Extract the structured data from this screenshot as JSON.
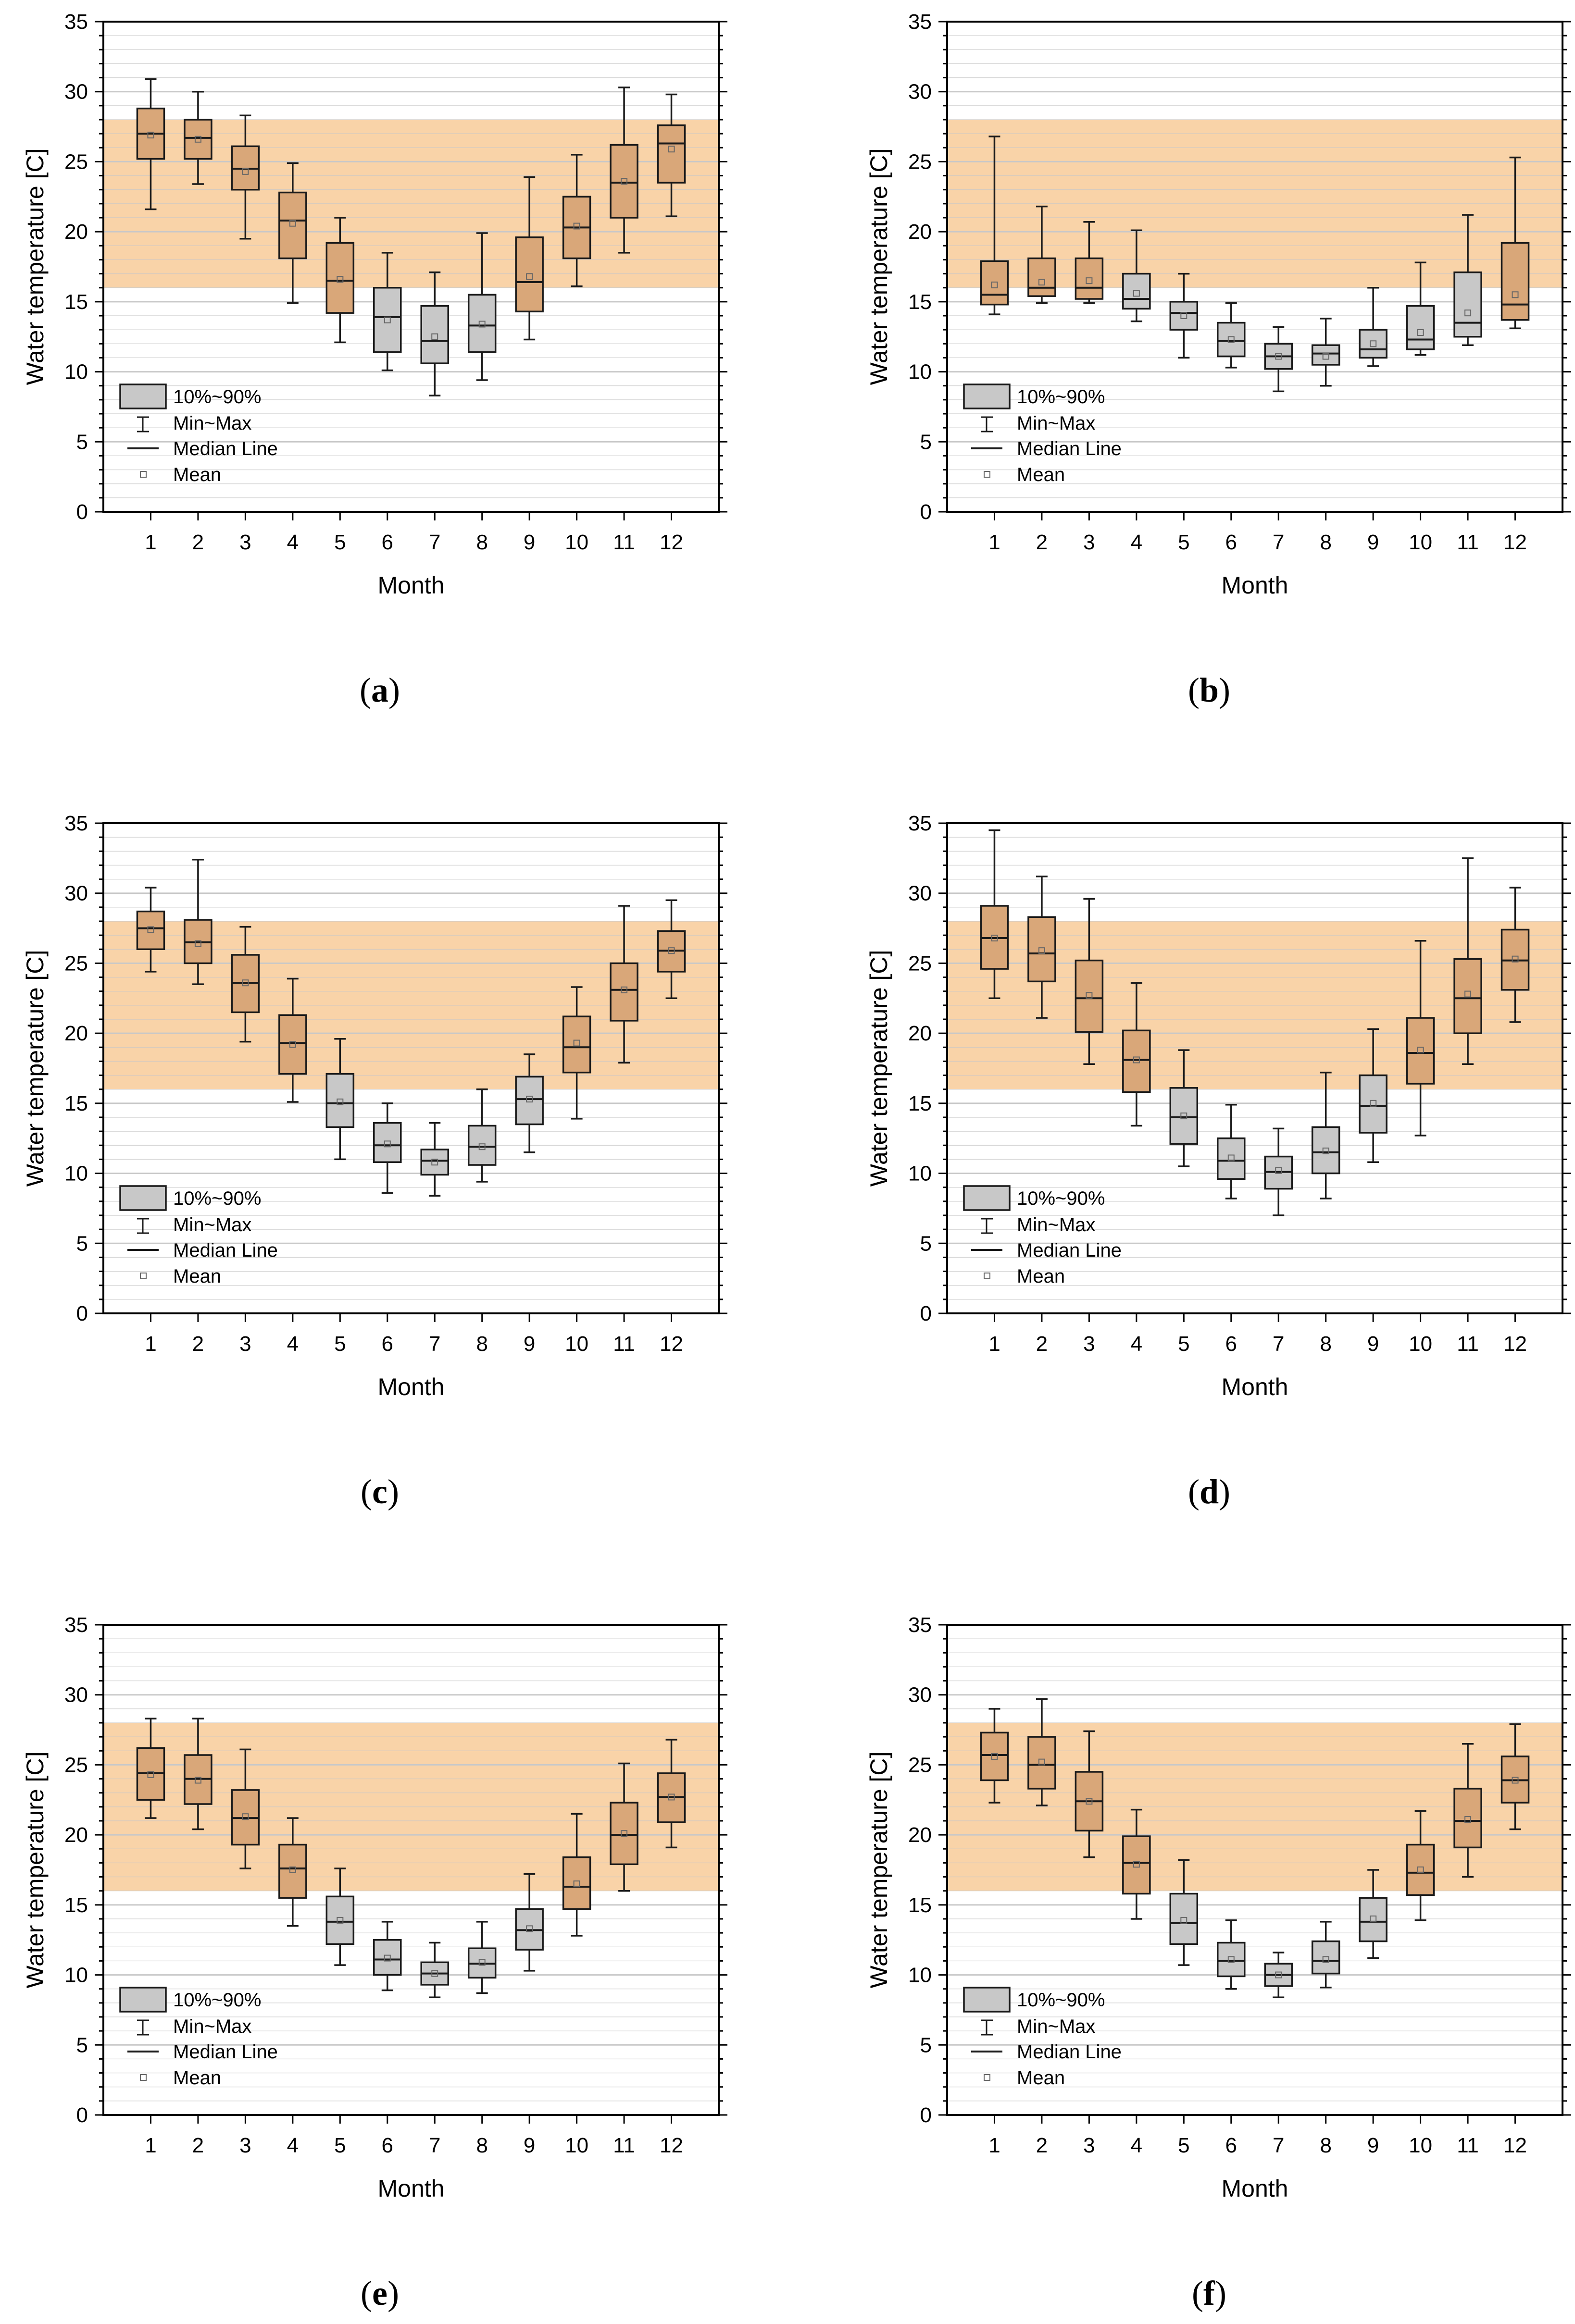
{
  "figure": {
    "legend": {
      "box_label": "10%~90%",
      "whisker_label": "Min~Max",
      "median_label": "Median Line",
      "mean_label": "Mean"
    },
    "colors": {
      "band": "#f9d3a8",
      "box_in_band": "#d9a779",
      "box_outside": "#c8c8c8",
      "box_border": "#1a1a1a",
      "grid": "#c8c8c8"
    }
  },
  "chart_data": [
    {
      "panel": "a",
      "caption_open": "(",
      "caption_letter": "a",
      "caption_close": ")",
      "type": "boxplot",
      "xlabel": "Month",
      "ylabel": "Water temperature [C]",
      "categories": [
        "1",
        "2",
        "3",
        "4",
        "5",
        "6",
        "7",
        "8",
        "9",
        "10",
        "11",
        "12"
      ],
      "ylim": [
        0,
        35
      ],
      "yticks": [
        "0",
        "5",
        "10",
        "15",
        "20",
        "25",
        "30",
        "35"
      ],
      "band": [
        16,
        28
      ],
      "series": [
        {
          "month": "1",
          "min": 21.6,
          "p10": 25.2,
          "median": 27.0,
          "p90": 28.8,
          "max": 30.9,
          "mean": 26.9
        },
        {
          "month": "2",
          "min": 23.4,
          "p10": 25.2,
          "median": 26.7,
          "p90": 28.0,
          "max": 30.0,
          "mean": 26.6
        },
        {
          "month": "3",
          "min": 19.5,
          "p10": 23.0,
          "median": 24.5,
          "p90": 26.1,
          "max": 28.3,
          "mean": 24.3
        },
        {
          "month": "4",
          "min": 14.9,
          "p10": 18.1,
          "median": 20.8,
          "p90": 22.8,
          "max": 24.9,
          "mean": 20.6
        },
        {
          "month": "5",
          "min": 12.1,
          "p10": 14.2,
          "median": 16.5,
          "p90": 19.2,
          "max": 21.0,
          "mean": 16.6
        },
        {
          "month": "6",
          "min": 10.1,
          "p10": 11.4,
          "median": 13.9,
          "p90": 16.0,
          "max": 18.5,
          "mean": 13.7
        },
        {
          "month": "7",
          "min": 8.3,
          "p10": 10.6,
          "median": 12.2,
          "p90": 14.7,
          "max": 17.1,
          "mean": 12.5
        },
        {
          "month": "8",
          "min": 9.4,
          "p10": 11.4,
          "median": 13.3,
          "p90": 15.5,
          "max": 19.9,
          "mean": 13.4
        },
        {
          "month": "9",
          "min": 12.3,
          "p10": 14.3,
          "median": 16.4,
          "p90": 19.6,
          "max": 23.9,
          "mean": 16.8
        },
        {
          "month": "10",
          "min": 16.1,
          "p10": 18.1,
          "median": 20.3,
          "p90": 22.5,
          "max": 25.5,
          "mean": 20.4
        },
        {
          "month": "11",
          "min": 18.5,
          "p10": 21.0,
          "median": 23.5,
          "p90": 26.2,
          "max": 30.3,
          "mean": 23.6
        },
        {
          "month": "12",
          "min": 21.1,
          "p10": 23.5,
          "median": 26.3,
          "p90": 27.6,
          "max": 29.8,
          "mean": 25.9
        }
      ]
    },
    {
      "panel": "b",
      "caption_open": "(",
      "caption_letter": "b",
      "caption_close": ")",
      "type": "boxplot",
      "xlabel": "Month",
      "ylabel": "Water temperature [C]",
      "categories": [
        "1",
        "2",
        "3",
        "4",
        "5",
        "6",
        "7",
        "8",
        "9",
        "10",
        "11",
        "12"
      ],
      "ylim": [
        0,
        35
      ],
      "yticks": [
        "0",
        "5",
        "10",
        "15",
        "20",
        "25",
        "30",
        "35"
      ],
      "band": [
        16,
        28
      ],
      "series": [
        {
          "month": "1",
          "min": 14.1,
          "p10": 14.8,
          "median": 15.5,
          "p90": 17.9,
          "max": 26.8,
          "mean": 16.2
        },
        {
          "month": "2",
          "min": 14.9,
          "p10": 15.4,
          "median": 16.0,
          "p90": 18.1,
          "max": 21.8,
          "mean": 16.4
        },
        {
          "month": "3",
          "min": 14.9,
          "p10": 15.2,
          "median": 16.0,
          "p90": 18.1,
          "max": 20.7,
          "mean": 16.5
        },
        {
          "month": "4",
          "min": 13.6,
          "p10": 14.5,
          "median": 15.2,
          "p90": 17.0,
          "max": 20.1,
          "mean": 15.6
        },
        {
          "month": "5",
          "min": 11.0,
          "p10": 13.0,
          "median": 14.2,
          "p90": 15.0,
          "max": 17.0,
          "mean": 14.0
        },
        {
          "month": "6",
          "min": 10.3,
          "p10": 11.1,
          "median": 12.2,
          "p90": 13.5,
          "max": 14.9,
          "mean": 12.3
        },
        {
          "month": "7",
          "min": 8.6,
          "p10": 10.2,
          "median": 11.1,
          "p90": 12.0,
          "max": 13.2,
          "mean": 11.1
        },
        {
          "month": "8",
          "min": 9.0,
          "p10": 10.5,
          "median": 11.3,
          "p90": 11.9,
          "max": 13.8,
          "mean": 11.1
        },
        {
          "month": "9",
          "min": 10.4,
          "p10": 11.0,
          "median": 11.6,
          "p90": 13.0,
          "max": 16.0,
          "mean": 12.0
        },
        {
          "month": "10",
          "min": 11.2,
          "p10": 11.6,
          "median": 12.3,
          "p90": 14.7,
          "max": 17.8,
          "mean": 12.8
        },
        {
          "month": "11",
          "min": 11.9,
          "p10": 12.5,
          "median": 13.5,
          "p90": 17.1,
          "max": 21.2,
          "mean": 14.2
        },
        {
          "month": "12",
          "min": 13.1,
          "p10": 13.7,
          "median": 14.8,
          "p90": 19.2,
          "max": 25.3,
          "mean": 15.5
        }
      ]
    },
    {
      "panel": "c",
      "caption_open": "(",
      "caption_letter": "c",
      "caption_close": ")",
      "type": "boxplot",
      "xlabel": "Month",
      "ylabel": "Water temperature [C]",
      "categories": [
        "1",
        "2",
        "3",
        "4",
        "5",
        "6",
        "7",
        "8",
        "9",
        "10",
        "11",
        "12"
      ],
      "ylim": [
        0,
        35
      ],
      "yticks": [
        "0",
        "5",
        "10",
        "15",
        "20",
        "25",
        "30",
        "35"
      ],
      "band": [
        16,
        28
      ],
      "series": [
        {
          "month": "1",
          "min": 24.4,
          "p10": 26.0,
          "median": 27.5,
          "p90": 28.7,
          "max": 30.4,
          "mean": 27.4
        },
        {
          "month": "2",
          "min": 23.5,
          "p10": 25.0,
          "median": 26.5,
          "p90": 28.1,
          "max": 32.4,
          "mean": 26.4
        },
        {
          "month": "3",
          "min": 19.4,
          "p10": 21.5,
          "median": 23.6,
          "p90": 25.6,
          "max": 27.6,
          "mean": 23.6
        },
        {
          "month": "4",
          "min": 15.1,
          "p10": 17.1,
          "median": 19.3,
          "p90": 21.3,
          "max": 23.9,
          "mean": 19.2
        },
        {
          "month": "5",
          "min": 11.0,
          "p10": 13.3,
          "median": 15.0,
          "p90": 17.1,
          "max": 19.6,
          "mean": 15.1
        },
        {
          "month": "6",
          "min": 8.6,
          "p10": 10.8,
          "median": 12.0,
          "p90": 13.6,
          "max": 15.0,
          "mean": 12.1
        },
        {
          "month": "7",
          "min": 8.4,
          "p10": 9.9,
          "median": 10.9,
          "p90": 11.7,
          "max": 13.6,
          "mean": 10.8
        },
        {
          "month": "8",
          "min": 9.4,
          "p10": 10.6,
          "median": 11.9,
          "p90": 13.4,
          "max": 16.0,
          "mean": 11.9
        },
        {
          "month": "9",
          "min": 11.5,
          "p10": 13.5,
          "median": 15.3,
          "p90": 16.9,
          "max": 18.5,
          "mean": 15.3
        },
        {
          "month": "10",
          "min": 13.9,
          "p10": 17.2,
          "median": 19.0,
          "p90": 21.2,
          "max": 23.3,
          "mean": 19.3
        },
        {
          "month": "11",
          "min": 17.9,
          "p10": 20.9,
          "median": 23.1,
          "p90": 25.0,
          "max": 29.1,
          "mean": 23.1
        },
        {
          "month": "12",
          "min": 22.5,
          "p10": 24.4,
          "median": 25.9,
          "p90": 27.3,
          "max": 29.5,
          "mean": 25.9
        }
      ]
    },
    {
      "panel": "d",
      "caption_open": "(",
      "caption_letter": "d",
      "caption_close": ")",
      "type": "boxplot",
      "xlabel": "Month",
      "ylabel": "Water temperature [C]",
      "categories": [
        "1",
        "2",
        "3",
        "4",
        "5",
        "6",
        "7",
        "8",
        "9",
        "10",
        "11",
        "12"
      ],
      "ylim": [
        0,
        35
      ],
      "yticks": [
        "0",
        "5",
        "10",
        "15",
        "20",
        "25",
        "30",
        "35"
      ],
      "band": [
        16,
        28
      ],
      "series": [
        {
          "month": "1",
          "min": 22.5,
          "p10": 24.6,
          "median": 26.8,
          "p90": 29.1,
          "max": 34.5,
          "mean": 26.8
        },
        {
          "month": "2",
          "min": 21.1,
          "p10": 23.7,
          "median": 25.7,
          "p90": 28.3,
          "max": 31.2,
          "mean": 25.9
        },
        {
          "month": "3",
          "min": 17.8,
          "p10": 20.1,
          "median": 22.5,
          "p90": 25.2,
          "max": 29.6,
          "mean": 22.7
        },
        {
          "month": "4",
          "min": 13.4,
          "p10": 15.8,
          "median": 18.1,
          "p90": 20.2,
          "max": 23.6,
          "mean": 18.1
        },
        {
          "month": "5",
          "min": 10.5,
          "p10": 12.1,
          "median": 14.0,
          "p90": 16.1,
          "max": 18.8,
          "mean": 14.1
        },
        {
          "month": "6",
          "min": 8.2,
          "p10": 9.6,
          "median": 10.9,
          "p90": 12.5,
          "max": 14.9,
          "mean": 11.1
        },
        {
          "month": "7",
          "min": 7.0,
          "p10": 8.9,
          "median": 10.1,
          "p90": 11.2,
          "max": 13.2,
          "mean": 10.2
        },
        {
          "month": "8",
          "min": 8.2,
          "p10": 10.0,
          "median": 11.5,
          "p90": 13.3,
          "max": 17.2,
          "mean": 11.6
        },
        {
          "month": "9",
          "min": 10.8,
          "p10": 12.9,
          "median": 14.8,
          "p90": 17.0,
          "max": 20.3,
          "mean": 15.0
        },
        {
          "month": "10",
          "min": 12.7,
          "p10": 16.4,
          "median": 18.6,
          "p90": 21.1,
          "max": 26.6,
          "mean": 18.8
        },
        {
          "month": "11",
          "min": 17.8,
          "p10": 20.0,
          "median": 22.5,
          "p90": 25.3,
          "max": 32.5,
          "mean": 22.8
        },
        {
          "month": "12",
          "min": 20.8,
          "p10": 23.1,
          "median": 25.2,
          "p90": 27.4,
          "max": 30.4,
          "mean": 25.3
        }
      ]
    },
    {
      "panel": "e",
      "caption_open": "(",
      "caption_letter": "e",
      "caption_close": ")",
      "type": "boxplot",
      "xlabel": "Month",
      "ylabel": "Water temperature [C]",
      "categories": [
        "1",
        "2",
        "3",
        "4",
        "5",
        "6",
        "7",
        "8",
        "9",
        "10",
        "11",
        "12"
      ],
      "ylim": [
        0,
        35
      ],
      "yticks": [
        "0",
        "5",
        "10",
        "15",
        "20",
        "25",
        "30",
        "35"
      ],
      "band": [
        16,
        28
      ],
      "series": [
        {
          "month": "1",
          "min": 21.2,
          "p10": 22.5,
          "median": 24.4,
          "p90": 26.2,
          "max": 28.3,
          "mean": 24.3
        },
        {
          "month": "2",
          "min": 20.4,
          "p10": 22.2,
          "median": 24.0,
          "p90": 25.7,
          "max": 28.3,
          "mean": 23.9
        },
        {
          "month": "3",
          "min": 17.6,
          "p10": 19.3,
          "median": 21.2,
          "p90": 23.2,
          "max": 26.1,
          "mean": 21.3
        },
        {
          "month": "4",
          "min": 13.5,
          "p10": 15.5,
          "median": 17.6,
          "p90": 19.3,
          "max": 21.2,
          "mean": 17.5
        },
        {
          "month": "5",
          "min": 10.7,
          "p10": 12.2,
          "median": 13.8,
          "p90": 15.6,
          "max": 17.6,
          "mean": 13.9
        },
        {
          "month": "6",
          "min": 8.9,
          "p10": 10.0,
          "median": 11.1,
          "p90": 12.5,
          "max": 13.8,
          "mean": 11.2
        },
        {
          "month": "7",
          "min": 8.4,
          "p10": 9.3,
          "median": 10.1,
          "p90": 10.9,
          "max": 12.3,
          "mean": 10.1
        },
        {
          "month": "8",
          "min": 8.7,
          "p10": 9.8,
          "median": 10.8,
          "p90": 11.9,
          "max": 13.8,
          "mean": 10.9
        },
        {
          "month": "9",
          "min": 10.3,
          "p10": 11.8,
          "median": 13.2,
          "p90": 14.7,
          "max": 17.2,
          "mean": 13.3
        },
        {
          "month": "10",
          "min": 12.8,
          "p10": 14.7,
          "median": 16.3,
          "p90": 18.4,
          "max": 21.5,
          "mean": 16.5
        },
        {
          "month": "11",
          "min": 16.0,
          "p10": 17.9,
          "median": 20.0,
          "p90": 22.3,
          "max": 25.1,
          "mean": 20.1
        },
        {
          "month": "12",
          "min": 19.1,
          "p10": 20.9,
          "median": 22.7,
          "p90": 24.4,
          "max": 26.8,
          "mean": 22.7
        }
      ]
    },
    {
      "panel": "f",
      "caption_open": "(",
      "caption_letter": "f",
      "caption_close": ")",
      "type": "boxplot",
      "xlabel": "Month",
      "ylabel": "Water temperature [C]",
      "categories": [
        "1",
        "2",
        "3",
        "4",
        "5",
        "6",
        "7",
        "8",
        "9",
        "10",
        "11",
        "12"
      ],
      "ylim": [
        0,
        35
      ],
      "yticks": [
        "0",
        "5",
        "10",
        "15",
        "20",
        "25",
        "30",
        "35"
      ],
      "band": [
        16,
        28
      ],
      "series": [
        {
          "month": "1",
          "min": 22.3,
          "p10": 23.9,
          "median": 25.7,
          "p90": 27.3,
          "max": 29.0,
          "mean": 25.6
        },
        {
          "month": "2",
          "min": 22.1,
          "p10": 23.3,
          "median": 25.0,
          "p90": 27.0,
          "max": 29.7,
          "mean": 25.2
        },
        {
          "month": "3",
          "min": 18.4,
          "p10": 20.3,
          "median": 22.4,
          "p90": 24.5,
          "max": 27.4,
          "mean": 22.4
        },
        {
          "month": "4",
          "min": 14.0,
          "p10": 15.8,
          "median": 18.0,
          "p90": 19.9,
          "max": 21.8,
          "mean": 17.9
        },
        {
          "month": "5",
          "min": 10.7,
          "p10": 12.2,
          "median": 13.7,
          "p90": 15.8,
          "max": 18.2,
          "mean": 13.9
        },
        {
          "month": "6",
          "min": 9.0,
          "p10": 9.9,
          "median": 11.0,
          "p90": 12.3,
          "max": 13.9,
          "mean": 11.1
        },
        {
          "month": "7",
          "min": 8.4,
          "p10": 9.2,
          "median": 10.0,
          "p90": 10.8,
          "max": 11.6,
          "mean": 10.0
        },
        {
          "month": "8",
          "min": 9.1,
          "p10": 10.1,
          "median": 11.0,
          "p90": 12.4,
          "max": 13.8,
          "mean": 11.1
        },
        {
          "month": "9",
          "min": 11.2,
          "p10": 12.4,
          "median": 13.8,
          "p90": 15.5,
          "max": 17.5,
          "mean": 14.0
        },
        {
          "month": "10",
          "min": 13.9,
          "p10": 15.7,
          "median": 17.3,
          "p90": 19.3,
          "max": 21.7,
          "mean": 17.5
        },
        {
          "month": "11",
          "min": 17.0,
          "p10": 19.1,
          "median": 21.0,
          "p90": 23.3,
          "max": 26.5,
          "mean": 21.1
        },
        {
          "month": "12",
          "min": 20.4,
          "p10": 22.3,
          "median": 23.9,
          "p90": 25.6,
          "max": 27.9,
          "mean": 23.9
        }
      ]
    }
  ]
}
